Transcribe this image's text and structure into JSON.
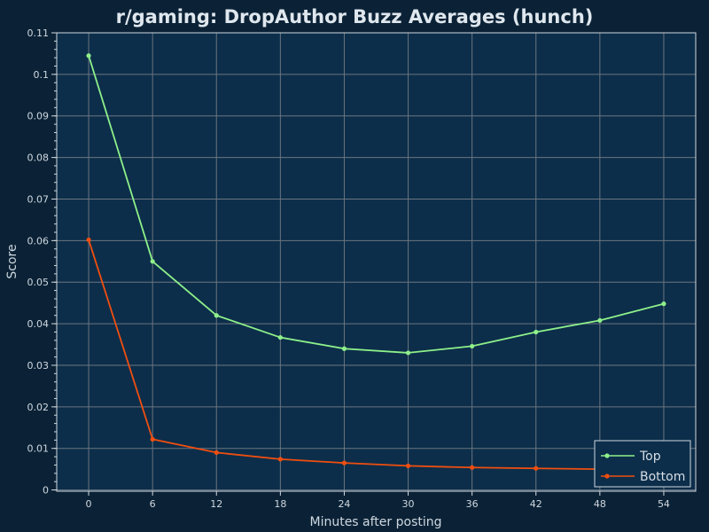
{
  "chart_data": {
    "type": "line",
    "title": "r/gaming: DropAuthor Buzz Averages (hunch)",
    "xlabel": "Minutes after posting",
    "ylabel": "Score",
    "x": [
      0,
      6,
      12,
      18,
      24,
      30,
      36,
      42,
      48,
      54
    ],
    "xticks": [
      "0",
      "6",
      "12",
      "18",
      "24",
      "30",
      "36",
      "42",
      "48",
      "54"
    ],
    "yticks": [
      0,
      0.01,
      0.02,
      0.03,
      0.04,
      0.05,
      0.06,
      0.07,
      0.08,
      0.09,
      0.1,
      0.11
    ],
    "ytick_labels": [
      "0",
      "0.01",
      "0.02",
      "0.03",
      "0.04",
      "0.05",
      "0.06",
      "0.07",
      "0.08",
      "0.09",
      "0.1",
      "0.11"
    ],
    "xlim": [
      -3,
      57
    ],
    "ylim": [
      -0.0003,
      0.11
    ],
    "grid": true,
    "legend_position": "bottom-right",
    "series": [
      {
        "name": "Top",
        "color": "#8ef08a",
        "values": [
          0.1045,
          0.055,
          0.042,
          0.0367,
          0.034,
          0.033,
          0.0346,
          0.038,
          0.0408,
          0.0448
        ]
      },
      {
        "name": "Bottom",
        "color": "#f04e10",
        "values": [
          0.0602,
          0.0122,
          0.009,
          0.0074,
          0.0065,
          0.0058,
          0.0054,
          0.0052,
          0.005,
          0.0049
        ]
      }
    ]
  },
  "colors": {
    "background": "#0b2236",
    "plot_background": "#0c2e4a",
    "grid": "#6b7580",
    "axis": "#cfd8e0",
    "text": "#dfe7ee"
  }
}
